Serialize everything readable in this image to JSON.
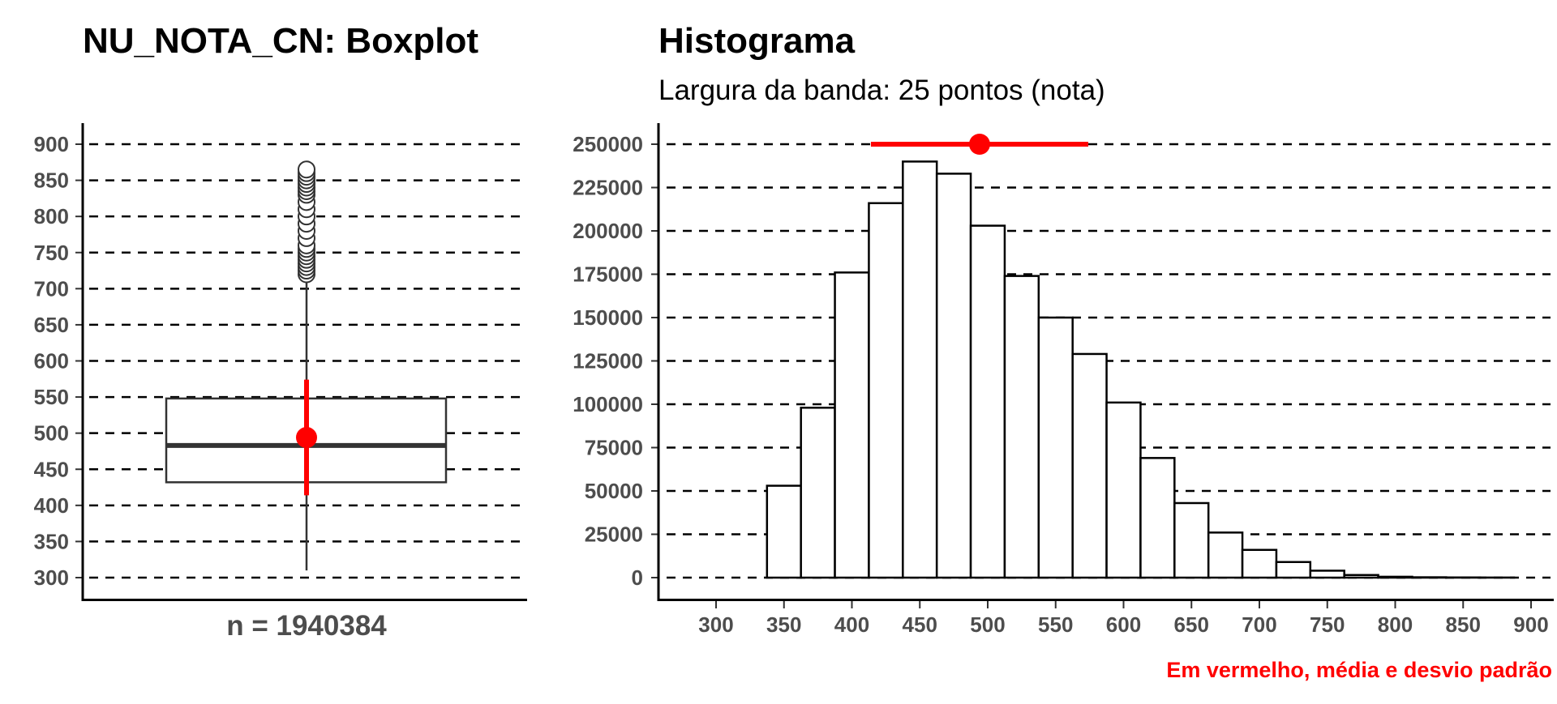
{
  "colors": {
    "accent": "#ff0000",
    "tick_text": "#4d4d4d",
    "box_line": "#333333"
  },
  "boxplot": {
    "title": "NU_NOTA_CN: Boxplot",
    "y_ticks": [
      "900",
      "850",
      "800",
      "750",
      "700",
      "650",
      "600",
      "550",
      "500",
      "450",
      "400",
      "350",
      "300"
    ],
    "n_label": "n = 1940384"
  },
  "histogram": {
    "title": "Histograma",
    "subtitle": "Largura da banda: 25 pontos (nota)",
    "y_ticks": [
      "250000",
      "225000",
      "200000",
      "175000",
      "150000",
      "125000",
      "100000",
      "75000",
      "50000",
      "25000",
      "0"
    ],
    "x_ticks": [
      "300",
      "350",
      "400",
      "450",
      "500",
      "550",
      "600",
      "650",
      "700",
      "750",
      "800",
      "850",
      "900"
    ],
    "caption": "Em vermelho, média e desvio padrão"
  },
  "chart_data": [
    {
      "type": "box",
      "title": "NU_NOTA_CN: Boxplot",
      "ylim": [
        290,
        920
      ],
      "grid": true,
      "n": 1940384,
      "stats": {
        "min": 310,
        "q1": 432,
        "median": 483,
        "q3": 548,
        "upper_whisker": 718
      },
      "outliers": [
        720,
        725,
        730,
        735,
        740,
        745,
        750,
        755,
        760,
        770,
        780,
        790,
        800,
        810,
        820,
        830,
        835,
        840,
        845,
        850,
        855,
        860,
        865
      ],
      "mean": 494,
      "sd": 80
    },
    {
      "type": "bar",
      "title": "Histograma",
      "subtitle": "Largura da banda: 25 pontos (nota)",
      "bin_width": 25,
      "xlim": [
        287,
        907
      ],
      "ylim": [
        -8000,
        262000
      ],
      "grid": true,
      "bins": [
        {
          "x": 300,
          "count": 0
        },
        {
          "x": 325,
          "count": 0
        },
        {
          "x": 350,
          "count": 53000
        },
        {
          "x": 375,
          "count": 98000
        },
        {
          "x": 400,
          "count": 176000
        },
        {
          "x": 425,
          "count": 216000
        },
        {
          "x": 450,
          "count": 240000
        },
        {
          "x": 475,
          "count": 233000
        },
        {
          "x": 500,
          "count": 203000
        },
        {
          "x": 525,
          "count": 174000
        },
        {
          "x": 550,
          "count": 150000
        },
        {
          "x": 575,
          "count": 129000
        },
        {
          "x": 600,
          "count": 101000
        },
        {
          "x": 625,
          "count": 69000
        },
        {
          "x": 650,
          "count": 43000
        },
        {
          "x": 675,
          "count": 26000
        },
        {
          "x": 700,
          "count": 16000
        },
        {
          "x": 725,
          "count": 9000
        },
        {
          "x": 750,
          "count": 4000
        },
        {
          "x": 775,
          "count": 1500
        },
        {
          "x": 800,
          "count": 500
        },
        {
          "x": 825,
          "count": 200
        },
        {
          "x": 850,
          "count": 100
        },
        {
          "x": 875,
          "count": 50
        }
      ],
      "mean": 494,
      "sd": 80,
      "mean_marker_y": 250000,
      "caption": "Em vermelho, média e desvio padrão"
    }
  ]
}
